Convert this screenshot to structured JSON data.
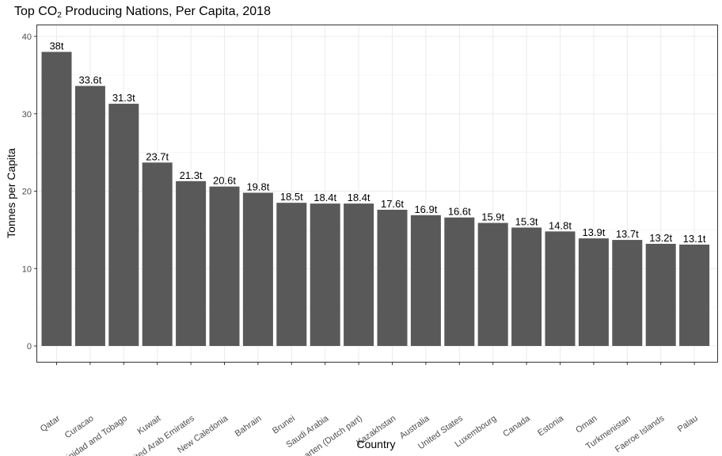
{
  "chart_data": {
    "type": "bar",
    "title": {
      "pre": "Top CO",
      "sub": "2",
      "post": " Producing Nations, Per Capita, 2018"
    },
    "xlabel": "Country",
    "ylabel": "Tonnes per Capita",
    "ylim": [
      0,
      40
    ],
    "yticks": [
      "0",
      "10",
      "20",
      "30",
      "40"
    ],
    "grid": true,
    "categories": [
      "Qatar",
      "Curacao",
      "Trinidad and Tobago",
      "Kuwait",
      "United Arab Emirates",
      "New Caledonia",
      "Bahrain",
      "Brunei",
      "Saudi Arabia",
      "Sint Maarten (Dutch part)",
      "Kazakhstan",
      "Australia",
      "United States",
      "Luxembourg",
      "Canada",
      "Estonia",
      "Oman",
      "Turkmenistan",
      "Faeroe Islands",
      "Palau"
    ],
    "values": [
      38,
      33.6,
      31.3,
      23.7,
      21.3,
      20.6,
      19.8,
      18.5,
      18.4,
      18.4,
      17.6,
      16.9,
      16.6,
      15.9,
      15.3,
      14.8,
      13.9,
      13.7,
      13.2,
      13.1
    ],
    "data_labels": [
      "38t",
      "33.6t",
      "31.3t",
      "23.7t",
      "21.3t",
      "20.6t",
      "19.8t",
      "18.5t",
      "18.4t",
      "18.4t",
      "17.6t",
      "16.9t",
      "16.6t",
      "15.9t",
      "15.3t",
      "14.8t",
      "13.9t",
      "13.7t",
      "13.2t",
      "13.1t"
    ],
    "bar_color": "#595959",
    "grid_color": "#ebebeb",
    "panel_border_color": "#333333",
    "tick_label_color": "#4d4d4d"
  }
}
